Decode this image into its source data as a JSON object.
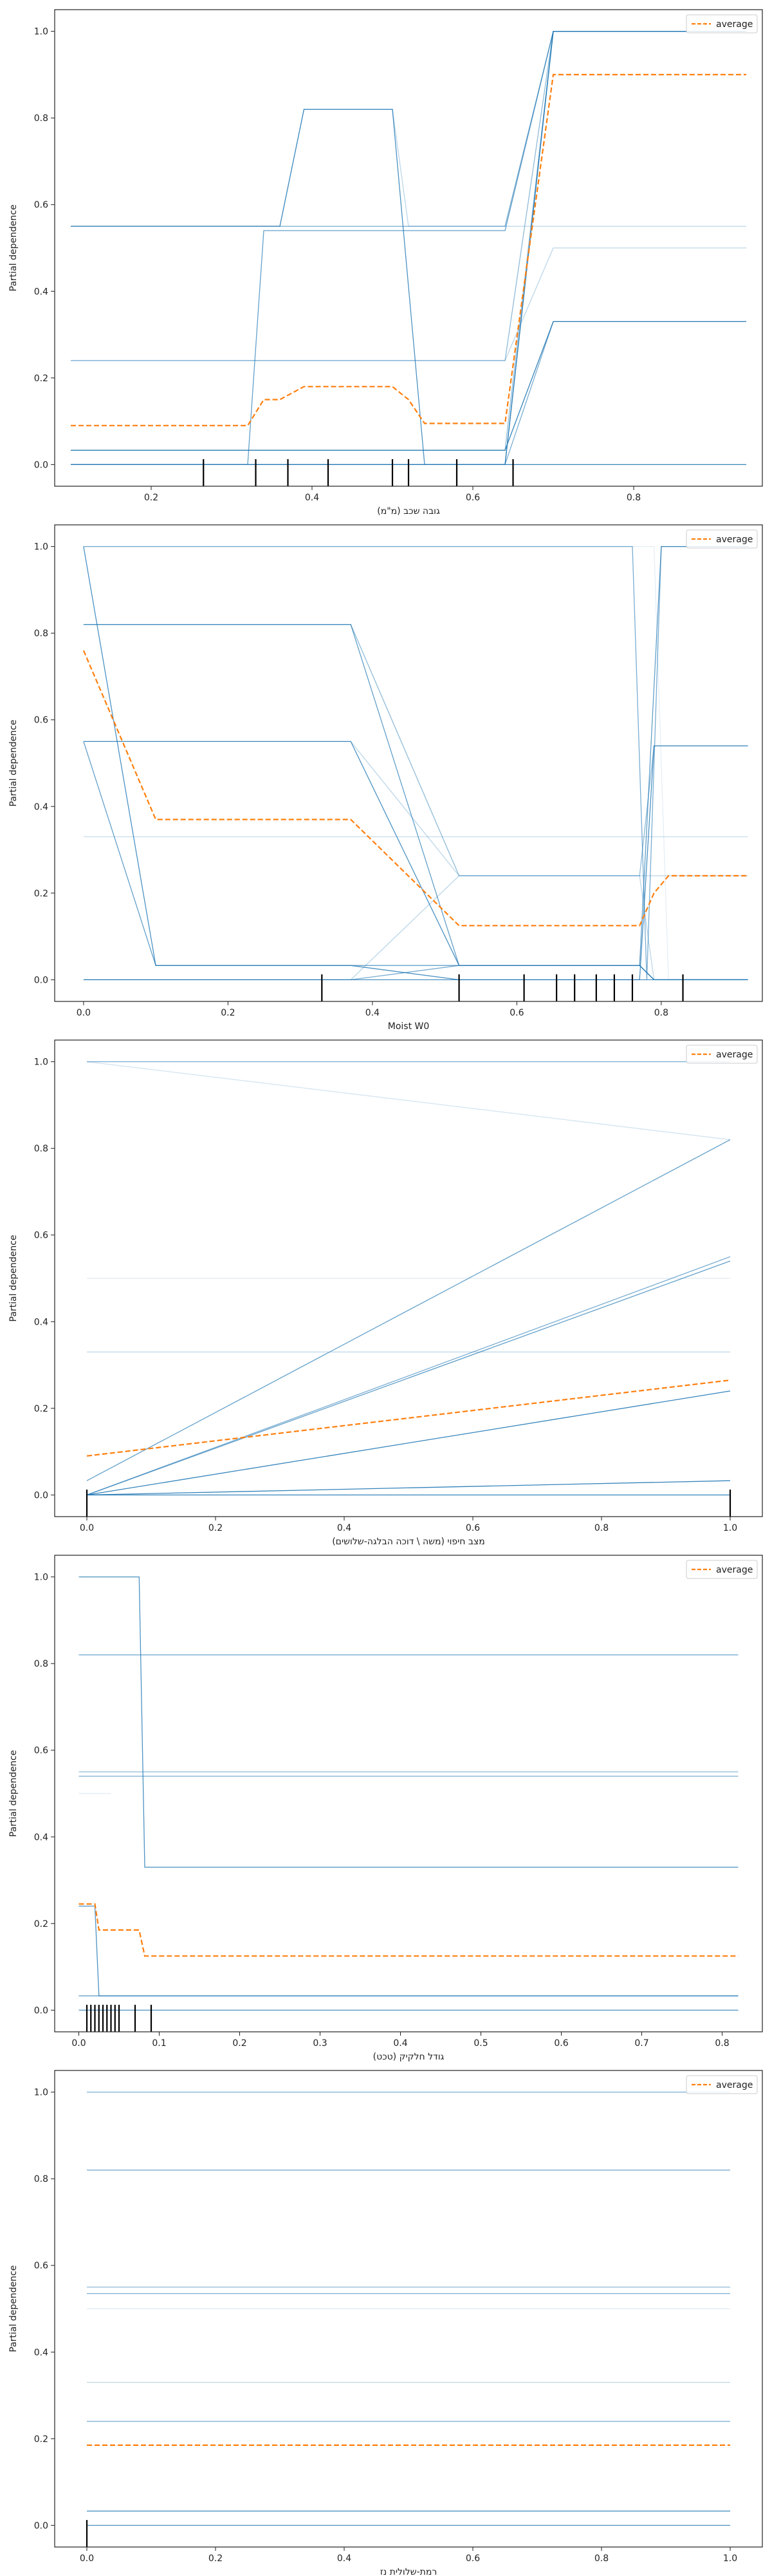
{
  "colors": {
    "ice": "#1f77b4",
    "average": "#ff7f0e",
    "axes": "#222222",
    "rug": "#000000"
  },
  "chart_data": [
    {
      "type": "line",
      "xlabel": "גובה שכב (מ\"מ)",
      "ylabel": "Partial dependence",
      "xlim": [
        0.08,
        0.96
      ],
      "ylim": [
        -0.05,
        1.05
      ],
      "xticks": [
        0.2,
        0.4,
        0.6,
        0.8
      ],
      "yticks": [
        0.0,
        0.2,
        0.4,
        0.6,
        0.8,
        1.0
      ],
      "legend": {
        "label": "average",
        "position": "top-right"
      },
      "series": [
        {
          "x": [
            0.1,
            0.32,
            0.34,
            0.64,
            0.7,
            0.94
          ],
          "y": [
            0.0,
            0.0,
            0.54,
            0.54,
            1.0,
            1.0
          ],
          "alpha": 0.7
        },
        {
          "x": [
            0.1,
            0.36,
            0.39,
            0.5,
            0.52,
            0.94
          ],
          "y": [
            0.55,
            0.55,
            0.82,
            0.82,
            0.55,
            0.55
          ],
          "alpha": 0.3
        },
        {
          "x": [
            0.1,
            0.36,
            0.39,
            0.5,
            0.54,
            0.64,
            0.7,
            0.94
          ],
          "y": [
            0.55,
            0.55,
            0.82,
            0.82,
            0.0,
            0.0,
            1.0,
            1.0
          ],
          "alpha": 0.8
        },
        {
          "x": [
            0.1,
            0.64,
            0.7,
            0.94
          ],
          "y": [
            0.55,
            0.55,
            1.0,
            1.0
          ],
          "alpha": 0.6
        },
        {
          "x": [
            0.1,
            0.64,
            0.7,
            0.94
          ],
          "y": [
            0.24,
            0.24,
            1.0,
            1.0
          ],
          "alpha": 0.5
        },
        {
          "x": [
            0.1,
            0.64,
            0.7,
            0.94
          ],
          "y": [
            0.24,
            0.24,
            0.5,
            0.5
          ],
          "alpha": 0.3
        },
        {
          "x": [
            0.1,
            0.64,
            0.7,
            0.94
          ],
          "y": [
            0.033,
            0.033,
            0.33,
            0.33
          ],
          "alpha": 0.9
        },
        {
          "x": [
            0.1,
            0.64,
            0.7,
            0.94
          ],
          "y": [
            0.0,
            0.0,
            1.0,
            1.0
          ],
          "alpha": 0.8
        },
        {
          "x": [
            0.1,
            0.64,
            0.7,
            0.94
          ],
          "y": [
            0.0,
            0.0,
            0.33,
            0.33
          ],
          "alpha": 0.6
        },
        {
          "x": [
            0.1,
            0.94
          ],
          "y": [
            0.0,
            0.0
          ],
          "alpha": 0.9
        },
        {
          "x": [
            0.1,
            0.64,
            0.7,
            0.94
          ],
          "y": [
            0.033,
            0.033,
            1.0,
            1.0
          ],
          "alpha": 0.5
        }
      ],
      "average": {
        "x": [
          0.1,
          0.32,
          0.34,
          0.36,
          0.39,
          0.5,
          0.52,
          0.54,
          0.64,
          0.7,
          0.94
        ],
        "y": [
          0.09,
          0.09,
          0.15,
          0.15,
          0.18,
          0.18,
          0.15,
          0.095,
          0.095,
          0.9,
          0.9
        ]
      },
      "rug": [
        0.265,
        0.33,
        0.37,
        0.42,
        0.5,
        0.52,
        0.58,
        0.65
      ]
    },
    {
      "type": "line",
      "xlabel": "Moist W0",
      "ylabel": "Partial dependence",
      "xlim": [
        -0.04,
        0.94
      ],
      "ylim": [
        -0.05,
        1.05
      ],
      "xticks": [
        0.0,
        0.2,
        0.4,
        0.6,
        0.8
      ],
      "yticks": [
        0.0,
        0.2,
        0.4,
        0.6,
        0.8,
        1.0
      ],
      "legend": {
        "label": "average",
        "position": "top-right"
      },
      "series": [
        {
          "x": [
            0.0,
            0.1,
            0.37,
            0.52,
            0.77,
            0.79,
            0.92
          ],
          "y": [
            1.0,
            0.033,
            0.033,
            0.0,
            0.0,
            0.54,
            0.54
          ],
          "alpha": 0.8
        },
        {
          "x": [
            0.0,
            0.1,
            0.37,
            0.52,
            0.77,
            0.79,
            0.92
          ],
          "y": [
            0.55,
            0.033,
            0.033,
            0.033,
            0.033,
            0.0,
            0.0
          ],
          "alpha": 0.7
        },
        {
          "x": [
            0.0,
            0.37,
            0.52,
            0.77,
            0.79,
            0.81,
            0.92
          ],
          "y": [
            1.0,
            1.0,
            1.0,
            1.0,
            1.0,
            0.0,
            0.0
          ],
          "alpha": 0.0
        },
        {
          "x": [
            0.0,
            0.37,
            0.52,
            0.77,
            0.8,
            0.92
          ],
          "y": [
            0.82,
            0.82,
            0.033,
            0.033,
            1.0,
            1.0
          ],
          "alpha": 0.7
        },
        {
          "x": [
            0.0,
            0.37,
            0.52,
            0.77,
            0.79,
            0.92
          ],
          "y": [
            0.82,
            0.82,
            0.24,
            0.24,
            0.54,
            0.54
          ],
          "alpha": 0.5
        },
        {
          "x": [
            0.0,
            0.37,
            0.52,
            0.77,
            0.79,
            0.92
          ],
          "y": [
            0.55,
            0.55,
            0.033,
            0.033,
            0.0,
            0.0
          ],
          "alpha": 0.8
        },
        {
          "x": [
            0.0,
            0.37,
            0.52,
            0.92
          ],
          "y": [
            0.55,
            0.55,
            0.24,
            0.24
          ],
          "alpha": 0.3
        },
        {
          "x": [
            0.0,
            0.92
          ],
          "y": [
            0.33,
            0.33
          ],
          "alpha": 0.25
        },
        {
          "x": [
            0.0,
            0.37,
            0.52,
            0.77,
            0.79,
            0.92
          ],
          "y": [
            0.0,
            0.0,
            0.24,
            0.24,
            0.0,
            0.0
          ],
          "alpha": 0.3
        },
        {
          "x": [
            0.0,
            0.37,
            0.52,
            0.77,
            0.79,
            0.92
          ],
          "y": [
            0.0,
            0.0,
            0.033,
            0.033,
            0.0,
            0.0
          ],
          "alpha": 0.6
        },
        {
          "x": [
            0.0,
            0.92
          ],
          "y": [
            0.0,
            0.0
          ],
          "alpha": 0.8
        },
        {
          "x": [
            0.0,
            0.76,
            0.78,
            0.8,
            0.92
          ],
          "y": [
            1.0,
            1.0,
            0.0,
            1.0,
            1.0
          ],
          "alpha": 0.6
        }
      ],
      "average": {
        "x": [
          0.0,
          0.1,
          0.37,
          0.52,
          0.77,
          0.79,
          0.81,
          0.92
        ],
        "y": [
          0.76,
          0.37,
          0.37,
          0.125,
          0.125,
          0.2,
          0.24,
          0.24
        ]
      },
      "rug": [
        0.33,
        0.52,
        0.61,
        0.655,
        0.68,
        0.71,
        0.735,
        0.76,
        0.83
      ]
    },
    {
      "type": "line",
      "xlabel": "מצב חיפוי (משה \\ דוכה הבלגה-שלושים)",
      "ylabel": "Partial dependence",
      "xlim": [
        -0.05,
        1.05
      ],
      "ylim": [
        -0.05,
        1.05
      ],
      "xticks": [
        0.0,
        0.2,
        0.4,
        0.6,
        0.8,
        1.0
      ],
      "yticks": [
        0.0,
        0.2,
        0.4,
        0.6,
        0.8,
        1.0
      ],
      "legend": {
        "label": "average",
        "position": "top-right"
      },
      "series": [
        {
          "x": [
            0.0,
            1.0
          ],
          "y": [
            1.0,
            1.0
          ],
          "alpha": 0.6
        },
        {
          "x": [
            0.0,
            1.0
          ],
          "y": [
            1.0,
            0.82
          ],
          "alpha": 0.2
        },
        {
          "x": [
            0.0,
            1.0
          ],
          "y": [
            0.033,
            0.82
          ],
          "alpha": 0.7
        },
        {
          "x": [
            0.0,
            1.0
          ],
          "y": [
            0.0,
            0.55
          ],
          "alpha": 0.6
        },
        {
          "x": [
            0.0,
            1.0
          ],
          "y": [
            0.0,
            0.54
          ],
          "alpha": 0.7
        },
        {
          "x": [
            0.0,
            1.0
          ],
          "y": [
            0.5,
            0.5
          ],
          "alpha": 0.15
        },
        {
          "x": [
            0.0,
            1.0
          ],
          "y": [
            0.33,
            0.33
          ],
          "alpha": 0.3
        },
        {
          "x": [
            0.0,
            1.0
          ],
          "y": [
            0.0,
            0.24
          ],
          "alpha": 0.9
        },
        {
          "x": [
            0.0,
            1.0
          ],
          "y": [
            0.0,
            0.033
          ],
          "alpha": 0.9
        },
        {
          "x": [
            0.0,
            1.0
          ],
          "y": [
            0.0,
            0.0
          ],
          "alpha": 0.9
        }
      ],
      "average": {
        "x": [
          0.0,
          1.0
        ],
        "y": [
          0.09,
          0.265
        ]
      },
      "rug": [
        0.0,
        1.0
      ]
    },
    {
      "type": "line",
      "xlabel": "גודל חלקיק (טכט)",
      "ylabel": "Partial dependence",
      "xlim": [
        -0.03,
        0.85
      ],
      "ylim": [
        -0.05,
        1.05
      ],
      "xticks": [
        0.0,
        0.1,
        0.2,
        0.3,
        0.4,
        0.5,
        0.6,
        0.7,
        0.8
      ],
      "yticks": [
        0.0,
        0.2,
        0.4,
        0.6,
        0.8,
        1.0
      ],
      "legend": {
        "label": "average",
        "position": "top-right"
      },
      "series": [
        {
          "x": [
            0.0,
            0.075,
            0.082,
            0.82
          ],
          "y": [
            1.0,
            1.0,
            0.33,
            0.33
          ],
          "alpha": 0.8
        },
        {
          "x": [
            0.0,
            0.82
          ],
          "y": [
            0.82,
            0.82
          ],
          "alpha": 0.6
        },
        {
          "x": [
            0.0,
            0.82
          ],
          "y": [
            0.55,
            0.55
          ],
          "alpha": 0.5
        },
        {
          "x": [
            0.0,
            0.82
          ],
          "y": [
            0.54,
            0.54
          ],
          "alpha": 0.6
        },
        {
          "x": [
            0.0,
            0.04
          ],
          "y": [
            0.5,
            0.5
          ],
          "alpha": 0.15
        },
        {
          "x": [
            0.0,
            0.02,
            0.025,
            0.82
          ],
          "y": [
            0.24,
            0.24,
            0.033,
            0.033
          ],
          "alpha": 0.8
        },
        {
          "x": [
            0.0,
            0.82
          ],
          "y": [
            0.033,
            0.033
          ],
          "alpha": 0.7
        },
        {
          "x": [
            0.0,
            0.82
          ],
          "y": [
            0.0,
            0.0
          ],
          "alpha": 0.8
        }
      ],
      "average": {
        "x": [
          0.0,
          0.02,
          0.025,
          0.075,
          0.082,
          0.82
        ],
        "y": [
          0.245,
          0.245,
          0.185,
          0.185,
          0.125,
          0.125
        ]
      },
      "rug": [
        0.01,
        0.015,
        0.02,
        0.025,
        0.03,
        0.035,
        0.04,
        0.045,
        0.05,
        0.07,
        0.09
      ]
    },
    {
      "type": "line",
      "xlabel": "רמת-שלולית נז",
      "ylabel": "Partial dependence",
      "xlim": [
        -0.05,
        1.05
      ],
      "ylim": [
        -0.05,
        1.05
      ],
      "xticks": [
        0.0,
        0.2,
        0.4,
        0.6,
        0.8,
        1.0
      ],
      "yticks": [
        0.0,
        0.2,
        0.4,
        0.6,
        0.8,
        1.0
      ],
      "legend": {
        "label": "average",
        "position": "top-right"
      },
      "series": [
        {
          "x": [
            0.0,
            1.0
          ],
          "y": [
            1.0,
            1.0
          ],
          "alpha": 0.6
        },
        {
          "x": [
            0.0,
            1.0
          ],
          "y": [
            0.82,
            0.82
          ],
          "alpha": 0.6
        },
        {
          "x": [
            0.0,
            1.0
          ],
          "y": [
            0.55,
            0.55
          ],
          "alpha": 0.5
        },
        {
          "x": [
            0.0,
            1.0
          ],
          "y": [
            0.535,
            0.535
          ],
          "alpha": 0.6
        },
        {
          "x": [
            0.0,
            1.0
          ],
          "y": [
            0.5,
            0.5
          ],
          "alpha": 0.15
        },
        {
          "x": [
            0.0,
            1.0
          ],
          "y": [
            0.33,
            0.33
          ],
          "alpha": 0.3
        },
        {
          "x": [
            0.0,
            1.0
          ],
          "y": [
            0.24,
            0.24
          ],
          "alpha": 0.6
        },
        {
          "x": [
            0.0,
            1.0
          ],
          "y": [
            0.033,
            0.033
          ],
          "alpha": 0.8
        },
        {
          "x": [
            0.0,
            1.0
          ],
          "y": [
            0.0,
            0.0
          ],
          "alpha": 0.8
        }
      ],
      "average": {
        "x": [
          0.0,
          1.0
        ],
        "y": [
          0.185,
          0.185
        ]
      },
      "rug": [
        0.0
      ]
    }
  ]
}
